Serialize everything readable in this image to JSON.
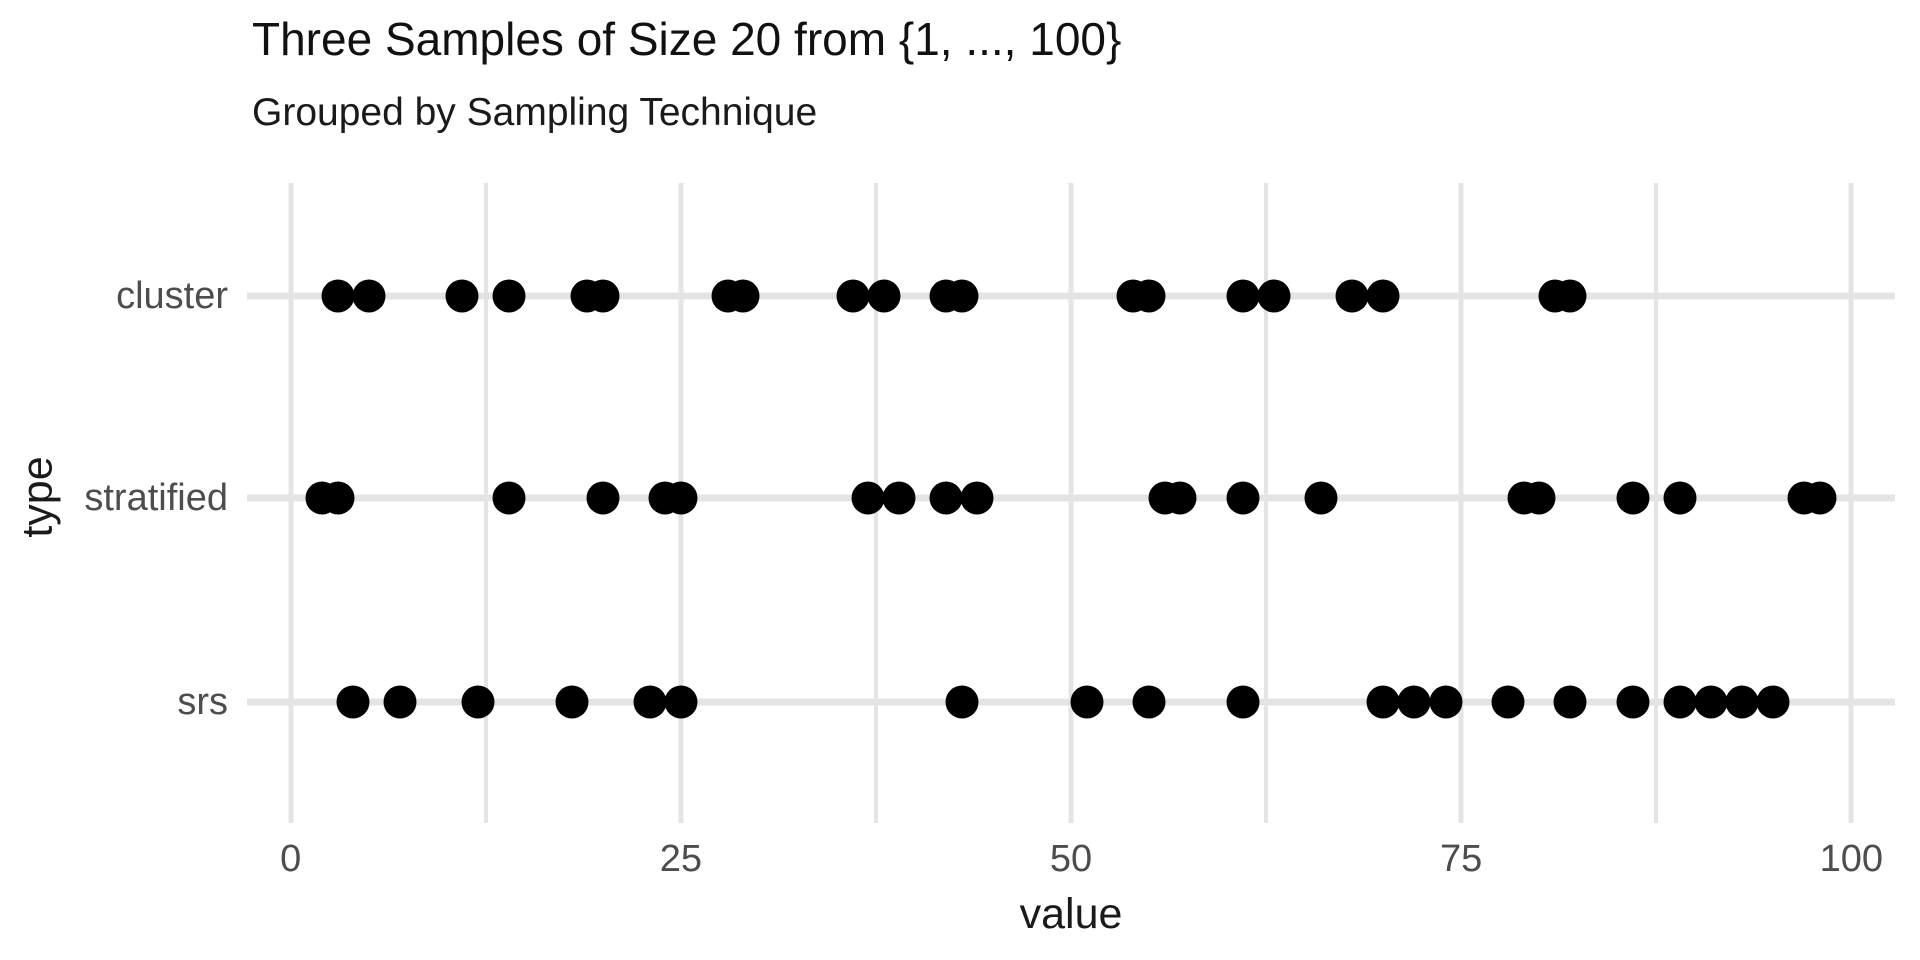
{
  "chart_data": {
    "type": "scatter",
    "title": "Three Samples of Size 20 from {1, ..., 100}",
    "subtitle": "Grouped by Sampling Technique",
    "xlabel": "value",
    "ylabel": "type",
    "categories": [
      "cluster",
      "stratified",
      "srs"
    ],
    "series": [
      {
        "name": "cluster",
        "values": [
          3,
          5,
          11,
          14,
          19,
          20,
          28,
          29,
          36,
          38,
          42,
          43,
          54,
          55,
          61,
          63,
          68,
          70,
          81,
          82
        ]
      },
      {
        "name": "stratified",
        "values": [
          2,
          3,
          14,
          20,
          24,
          25,
          37,
          39,
          42,
          44,
          56,
          57,
          61,
          66,
          79,
          80,
          86,
          89,
          97,
          98
        ]
      },
      {
        "name": "srs",
        "values": [
          4,
          7,
          12,
          18,
          23,
          25,
          43,
          51,
          55,
          61,
          70,
          72,
          74,
          78,
          82,
          86,
          89,
          91,
          93,
          95
        ]
      }
    ],
    "x_ticks": [
      "0",
      "25",
      "50",
      "75",
      "100"
    ],
    "x_tick_values": [
      0,
      25,
      50,
      75,
      100
    ],
    "x_minor_gridline_values": [
      12.5,
      37.5,
      62.5,
      87.5
    ],
    "xlim": [
      -2.8,
      102.8
    ],
    "grid": "on",
    "legend": "none",
    "colors": {
      "point": "#000000",
      "gridline": "#E4E4E4",
      "axis_text": "#4D4D4D",
      "title_text": "#111111",
      "background": "#FFFFFF"
    }
  }
}
